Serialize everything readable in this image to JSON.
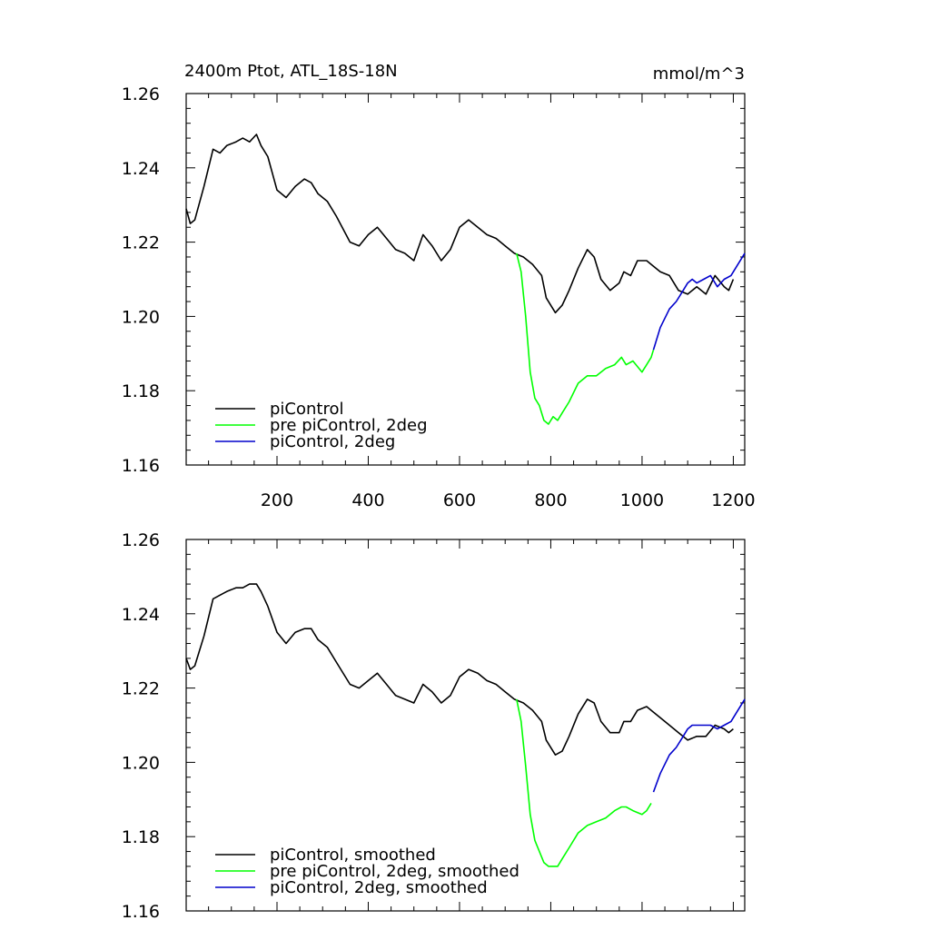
{
  "chart_data": [
    {
      "type": "line",
      "title": "2400m Ptot, ATL_18S-18N",
      "units": "mmol/m^3",
      "xlabel": "",
      "ylabel": "",
      "xlim": [
        1,
        1225
      ],
      "ylim": [
        1.16,
        1.26
      ],
      "xticks": [
        200,
        400,
        600,
        800,
        1000,
        1200
      ],
      "xtick_labels": [
        "200",
        "400",
        "600",
        "800",
        "1000",
        "1200"
      ],
      "yticks": [
        1.16,
        1.18,
        1.2,
        1.22,
        1.24,
        1.26
      ],
      "ytick_labels": [
        "1.16",
        "1.18",
        "1.20",
        "1.22",
        "1.24",
        "1.26"
      ],
      "grid": false,
      "legend_position": "bottom-left",
      "series": [
        {
          "name": "piControl",
          "color": "#000000",
          "x": [
            1,
            10,
            20,
            40,
            60,
            75,
            90,
            110,
            125,
            140,
            155,
            165,
            180,
            200,
            220,
            240,
            260,
            275,
            290,
            310,
            330,
            360,
            380,
            400,
            420,
            440,
            460,
            480,
            500,
            520,
            540,
            560,
            580,
            600,
            620,
            640,
            660,
            680,
            700,
            720,
            740,
            760,
            780,
            790,
            810,
            825,
            840,
            860,
            880,
            895,
            910,
            930,
            950,
            960,
            975,
            990,
            1010,
            1020,
            1040,
            1060,
            1080,
            1100,
            1120,
            1140,
            1160,
            1180,
            1190,
            1200
          ],
          "y": [
            1.229,
            1.225,
            1.226,
            1.235,
            1.245,
            1.244,
            1.246,
            1.247,
            1.248,
            1.247,
            1.249,
            1.246,
            1.243,
            1.234,
            1.232,
            1.235,
            1.237,
            1.236,
            1.233,
            1.231,
            1.227,
            1.22,
            1.219,
            1.222,
            1.224,
            1.221,
            1.218,
            1.217,
            1.215,
            1.222,
            1.219,
            1.215,
            1.218,
            1.224,
            1.226,
            1.224,
            1.222,
            1.221,
            1.219,
            1.217,
            1.216,
            1.214,
            1.211,
            1.205,
            1.201,
            1.203,
            1.207,
            1.213,
            1.218,
            1.216,
            1.21,
            1.207,
            1.209,
            1.212,
            1.211,
            1.215,
            1.215,
            1.214,
            1.212,
            1.211,
            1.207,
            1.206,
            1.208,
            1.206,
            1.211,
            1.208,
            1.207,
            1.21
          ]
        },
        {
          "name": "pre piControl, 2deg",
          "color": "#00ff00",
          "x": [
            725,
            735,
            745,
            755,
            765,
            775,
            785,
            795,
            805,
            815,
            825,
            840,
            860,
            880,
            900,
            920,
            940,
            955,
            965,
            980,
            1000,
            1010,
            1020,
            1025
          ],
          "y": [
            1.217,
            1.212,
            1.2,
            1.185,
            1.178,
            1.176,
            1.172,
            1.171,
            1.173,
            1.172,
            1.174,
            1.177,
            1.182,
            1.184,
            1.184,
            1.186,
            1.187,
            1.189,
            1.187,
            1.188,
            1.185,
            1.187,
            1.189,
            1.191
          ]
        },
        {
          "name": "piControl, 2deg",
          "color": "#0000cc",
          "x": [
            1025,
            1040,
            1060,
            1075,
            1090,
            1100,
            1110,
            1120,
            1135,
            1150,
            1165,
            1180,
            1195,
            1210,
            1225
          ],
          "y": [
            1.191,
            1.197,
            1.202,
            1.204,
            1.207,
            1.209,
            1.21,
            1.209,
            1.21,
            1.211,
            1.208,
            1.21,
            1.211,
            1.214,
            1.217
          ]
        }
      ]
    },
    {
      "type": "line",
      "title": "",
      "xlabel": "",
      "ylabel": "",
      "xlim": [
        1,
        1225
      ],
      "ylim": [
        1.16,
        1.26
      ],
      "yticks": [
        1.16,
        1.18,
        1.2,
        1.22,
        1.24,
        1.26
      ],
      "ytick_labels": [
        "1.16",
        "1.18",
        "1.20",
        "1.22",
        "1.24",
        "1.26"
      ],
      "grid": false,
      "legend_position": "bottom-left",
      "series": [
        {
          "name": "piControl, smoothed",
          "color": "#000000",
          "x": [
            1,
            10,
            20,
            40,
            60,
            75,
            90,
            110,
            125,
            140,
            155,
            165,
            180,
            200,
            220,
            240,
            260,
            275,
            290,
            310,
            330,
            360,
            380,
            400,
            420,
            440,
            460,
            480,
            500,
            520,
            540,
            560,
            580,
            600,
            620,
            640,
            660,
            680,
            700,
            720,
            740,
            760,
            780,
            790,
            810,
            825,
            840,
            860,
            880,
            895,
            910,
            930,
            950,
            960,
            975,
            990,
            1010,
            1020,
            1040,
            1060,
            1080,
            1100,
            1120,
            1140,
            1160,
            1180,
            1190,
            1200
          ],
          "y": [
            1.228,
            1.225,
            1.226,
            1.234,
            1.244,
            1.245,
            1.246,
            1.247,
            1.247,
            1.248,
            1.248,
            1.246,
            1.242,
            1.235,
            1.232,
            1.235,
            1.236,
            1.236,
            1.233,
            1.231,
            1.227,
            1.221,
            1.22,
            1.222,
            1.224,
            1.221,
            1.218,
            1.217,
            1.216,
            1.221,
            1.219,
            1.216,
            1.218,
            1.223,
            1.225,
            1.224,
            1.222,
            1.221,
            1.219,
            1.217,
            1.216,
            1.214,
            1.211,
            1.206,
            1.202,
            1.203,
            1.207,
            1.213,
            1.217,
            1.216,
            1.211,
            1.208,
            1.208,
            1.211,
            1.211,
            1.214,
            1.215,
            1.214,
            1.212,
            1.21,
            1.208,
            1.206,
            1.207,
            1.207,
            1.21,
            1.209,
            1.208,
            1.209
          ]
        },
        {
          "name": "pre piControl, 2deg, smoothed",
          "color": "#00ff00",
          "x": [
            725,
            735,
            745,
            755,
            765,
            775,
            785,
            795,
            805,
            815,
            825,
            840,
            860,
            880,
            900,
            920,
            940,
            955,
            965,
            980,
            1000,
            1010,
            1020
          ],
          "y": [
            1.217,
            1.211,
            1.199,
            1.186,
            1.179,
            1.176,
            1.173,
            1.172,
            1.172,
            1.172,
            1.174,
            1.177,
            1.181,
            1.183,
            1.184,
            1.185,
            1.187,
            1.188,
            1.188,
            1.187,
            1.186,
            1.187,
            1.189
          ]
        },
        {
          "name": "piControl, 2deg, smoothed",
          "color": "#0000cc",
          "x": [
            1025,
            1040,
            1060,
            1075,
            1090,
            1100,
            1110,
            1120,
            1135,
            1150,
            1165,
            1180,
            1195,
            1210,
            1225
          ],
          "y": [
            1.192,
            1.197,
            1.202,
            1.204,
            1.207,
            1.209,
            1.21,
            1.21,
            1.21,
            1.21,
            1.209,
            1.21,
            1.211,
            1.214,
            1.217
          ]
        }
      ]
    }
  ]
}
